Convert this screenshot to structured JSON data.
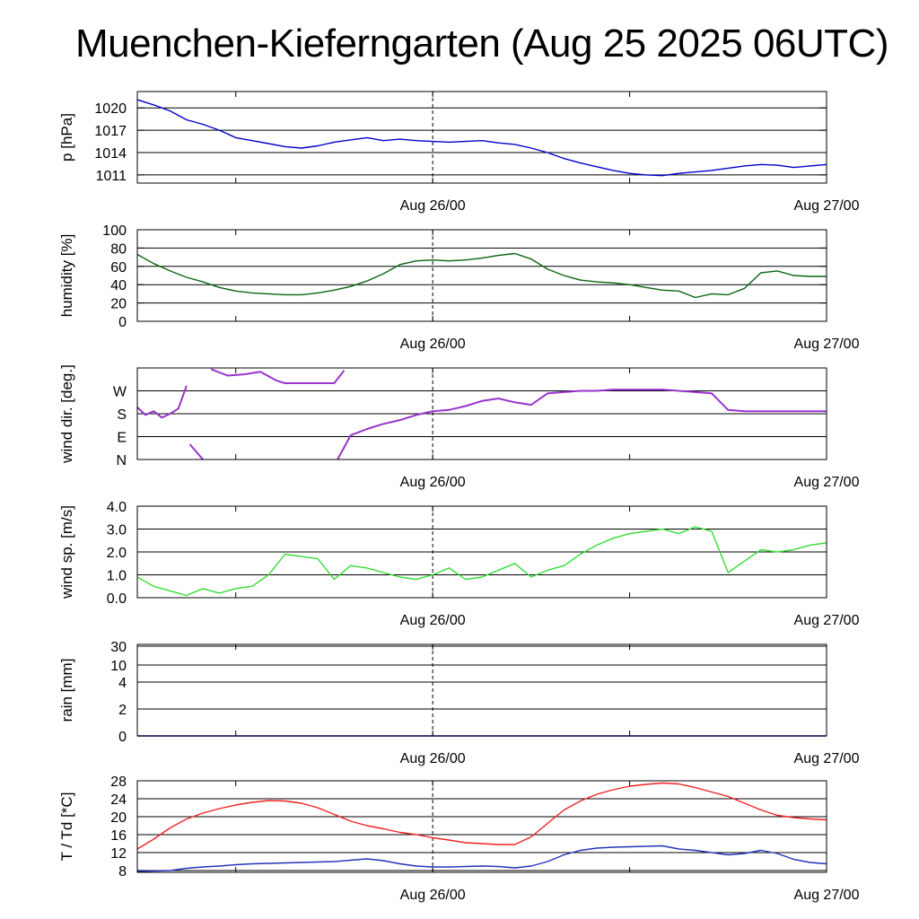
{
  "title": "Muenchen-Kieferngarten (Aug 25 2025 06UTC)",
  "x_tick_labels": [
    "Aug 26/00",
    "Aug 27/00"
  ],
  "chart_data": [
    {
      "id": "pressure",
      "type": "line",
      "ylabel": "p [hPa]",
      "ylim": [
        1009.9,
        1022.2
      ],
      "yticks": [
        1011,
        1014,
        1017,
        1020
      ],
      "ytick_labels": [
        "1011",
        "1014",
        "1017",
        "1020"
      ],
      "x_hours": [
        0,
        1,
        2,
        3,
        4,
        5,
        6,
        7,
        8,
        9,
        10,
        11,
        12,
        13,
        14,
        15,
        16,
        17,
        18,
        19,
        20,
        21,
        22,
        23,
        24,
        25,
        26,
        27,
        28,
        29,
        30,
        31,
        32,
        33,
        34,
        35,
        36,
        37,
        38,
        39,
        40,
        41,
        42
      ],
      "series": [
        {
          "color": "#0000cc",
          "values": [
            1021.1,
            1020.4,
            1019.6,
            1018.4,
            1017.8,
            1017.0,
            1016.0,
            1015.6,
            1015.2,
            1014.8,
            1014.6,
            1014.9,
            1015.4,
            1015.7,
            1016.0,
            1015.6,
            1015.8,
            1015.6,
            1015.5,
            1015.4,
            1015.5,
            1015.6,
            1015.3,
            1015.1,
            1014.6,
            1014.0,
            1013.2,
            1012.6,
            1012.1,
            1011.6,
            1011.2,
            1011.0,
            1010.9,
            1011.2,
            1011.4,
            1011.6,
            1011.9,
            1012.2,
            1012.4,
            1012.3,
            1012.0,
            1012.2,
            1012.4
          ]
        }
      ]
    },
    {
      "id": "humidity",
      "type": "line",
      "ylabel": "humidity [%]",
      "ylim": [
        0,
        100
      ],
      "yticks": [
        0,
        20,
        40,
        60,
        80,
        100
      ],
      "ytick_labels": [
        "0",
        "20",
        "40",
        "60",
        "80",
        "100"
      ],
      "x_hours": [
        0,
        1,
        2,
        3,
        4,
        5,
        6,
        7,
        8,
        9,
        10,
        11,
        12,
        13,
        14,
        15,
        16,
        17,
        18,
        19,
        20,
        21,
        22,
        23,
        24,
        25,
        26,
        27,
        28,
        29,
        30,
        31,
        32,
        33,
        34,
        35,
        36,
        37,
        38,
        39,
        40,
        41,
        42
      ],
      "series": [
        {
          "color": "#0a6410",
          "values": [
            73,
            63,
            55,
            48,
            43,
            37,
            33,
            31,
            30,
            29,
            29,
            31,
            34,
            38,
            44,
            52,
            62,
            66,
            67,
            66,
            67,
            69,
            72,
            74,
            68,
            57,
            50,
            45,
            43,
            42,
            40,
            37,
            34,
            33,
            26,
            30,
            29,
            36,
            53,
            55,
            50,
            49,
            49
          ]
        }
      ]
    },
    {
      "id": "wind-direction",
      "type": "scatter",
      "ylabel": "wind dir. [deg.]",
      "ylim": [
        0,
        360
      ],
      "yticks": [
        0,
        90,
        180,
        270
      ],
      "ytick_labels": [
        "N",
        "E",
        "S",
        "W"
      ],
      "segments": [
        {
          "color": "#9933cc",
          "x_hours": [
            0.0,
            0.5,
            1.0,
            1.5,
            2.0,
            2.5,
            3.0
          ],
          "values": [
            205,
            175,
            190,
            165,
            180,
            200,
            290
          ]
        },
        {
          "color": "#9933cc",
          "x_hours": [
            3.2,
            4.0
          ],
          "values": [
            60,
            0
          ]
        },
        {
          "color": "#9933cc",
          "x_hours": [
            4.5,
            5.5,
            6.5,
            7.5,
            8.5,
            9.0,
            10.0,
            11.0,
            12.0,
            12.6
          ],
          "values": [
            355,
            330,
            335,
            345,
            310,
            300,
            300,
            300,
            300,
            350
          ]
        },
        {
          "color": "#9933cc",
          "x_hours": [
            12.2,
            13.0,
            14.0,
            15.0,
            16.0,
            17.0,
            18.0,
            19.0,
            20.0,
            21.0,
            22.0,
            23.0,
            24.0,
            25.0,
            26.0,
            27.0,
            28.0,
            29.0,
            30.0,
            31.0,
            32.0,
            33.0,
            34.0,
            35.0,
            36.0,
            37.0,
            38.0,
            39.0,
            40.0,
            41.0,
            42.0
          ],
          "values": [
            0,
            95,
            120,
            140,
            155,
            175,
            190,
            195,
            210,
            230,
            240,
            225,
            215,
            260,
            265,
            270,
            270,
            275,
            275,
            275,
            275,
            270,
            265,
            260,
            195,
            190,
            190,
            190,
            190,
            190,
            190
          ]
        }
      ]
    },
    {
      "id": "wind-speed",
      "type": "line",
      "ylabel": "wind sp. [m/s]",
      "ylim": [
        0,
        4
      ],
      "yticks": [
        0,
        1,
        2,
        3,
        4
      ],
      "ytick_labels": [
        "0.0",
        "1.0",
        "2.0",
        "3.0",
        "4.0"
      ],
      "x_hours": [
        0,
        1,
        2,
        3,
        4,
        5,
        6,
        7,
        8,
        9,
        10,
        11,
        12,
        13,
        14,
        15,
        16,
        17,
        18,
        19,
        20,
        21,
        22,
        23,
        24,
        25,
        26,
        27,
        28,
        29,
        30,
        31,
        32,
        33,
        34,
        35,
        36,
        37,
        38,
        39,
        40,
        41,
        42
      ],
      "series": [
        {
          "color": "#33dd33",
          "values": [
            0.9,
            0.5,
            0.3,
            0.1,
            0.4,
            0.2,
            0.4,
            0.5,
            1.0,
            1.9,
            1.8,
            1.7,
            0.8,
            1.4,
            1.3,
            1.1,
            0.9,
            0.8,
            1.0,
            1.3,
            0.8,
            0.9,
            1.2,
            1.5,
            0.9,
            1.2,
            1.4,
            1.9,
            2.3,
            2.6,
            2.8,
            2.9,
            3.0,
            2.8,
            3.1,
            2.9,
            1.1,
            1.6,
            2.1,
            2.0,
            2.1,
            2.3,
            2.4
          ]
        }
      ]
    },
    {
      "id": "rain",
      "type": "line",
      "ylabel": "rain [mm]",
      "scale": "custom",
      "ylim": [
        0,
        30
      ],
      "yticks": [
        0,
        2,
        4,
        10,
        30
      ],
      "ytick_labels": [
        "0",
        "2",
        "4",
        "10",
        "30"
      ],
      "x_hours": [
        0,
        42
      ],
      "series": [
        {
          "color": "#0000cc",
          "values": [
            0,
            0
          ]
        }
      ]
    },
    {
      "id": "temperature",
      "type": "line",
      "ylabel": "T / Td [*C]",
      "ylim": [
        7.6,
        28
      ],
      "yticks": [
        8,
        12,
        16,
        20,
        24,
        28
      ],
      "ytick_labels": [
        "8",
        "12",
        "16",
        "20",
        "24",
        "28"
      ],
      "x_hours": [
        0,
        1,
        2,
        3,
        4,
        5,
        6,
        7,
        8,
        9,
        10,
        11,
        12,
        13,
        14,
        15,
        16,
        17,
        18,
        19,
        20,
        21,
        22,
        23,
        24,
        25,
        26,
        27,
        28,
        29,
        30,
        31,
        32,
        33,
        34,
        35,
        36,
        37,
        38,
        39,
        40,
        41,
        42
      ],
      "series": [
        {
          "name": "T",
          "color": "#ee2222",
          "values": [
            12.8,
            15.0,
            17.5,
            19.5,
            20.8,
            21.8,
            22.6,
            23.2,
            23.6,
            23.5,
            23.0,
            22.0,
            20.5,
            19.0,
            18.0,
            17.3,
            16.5,
            16.0,
            15.3,
            14.8,
            14.2,
            14.0,
            13.8,
            13.8,
            15.5,
            18.5,
            21.5,
            23.5,
            25.0,
            26.0,
            26.8,
            27.2,
            27.5,
            27.3,
            26.5,
            25.5,
            24.5,
            23.0,
            21.5,
            20.3,
            19.8,
            19.5,
            19.3
          ]
        },
        {
          "name": "Td",
          "color": "#2233bb",
          "values": [
            7.8,
            7.9,
            8.0,
            8.5,
            8.8,
            9.0,
            9.3,
            9.5,
            9.6,
            9.7,
            9.8,
            9.9,
            10.0,
            10.3,
            10.6,
            10.2,
            9.5,
            9.0,
            8.8,
            8.8,
            8.9,
            9.0,
            8.9,
            8.6,
            9.0,
            10.0,
            11.5,
            12.5,
            13.0,
            13.2,
            13.3,
            13.4,
            13.5,
            12.8,
            12.5,
            12.0,
            11.5,
            11.8,
            12.5,
            11.8,
            10.5,
            9.8,
            9.5
          ]
        }
      ]
    }
  ]
}
